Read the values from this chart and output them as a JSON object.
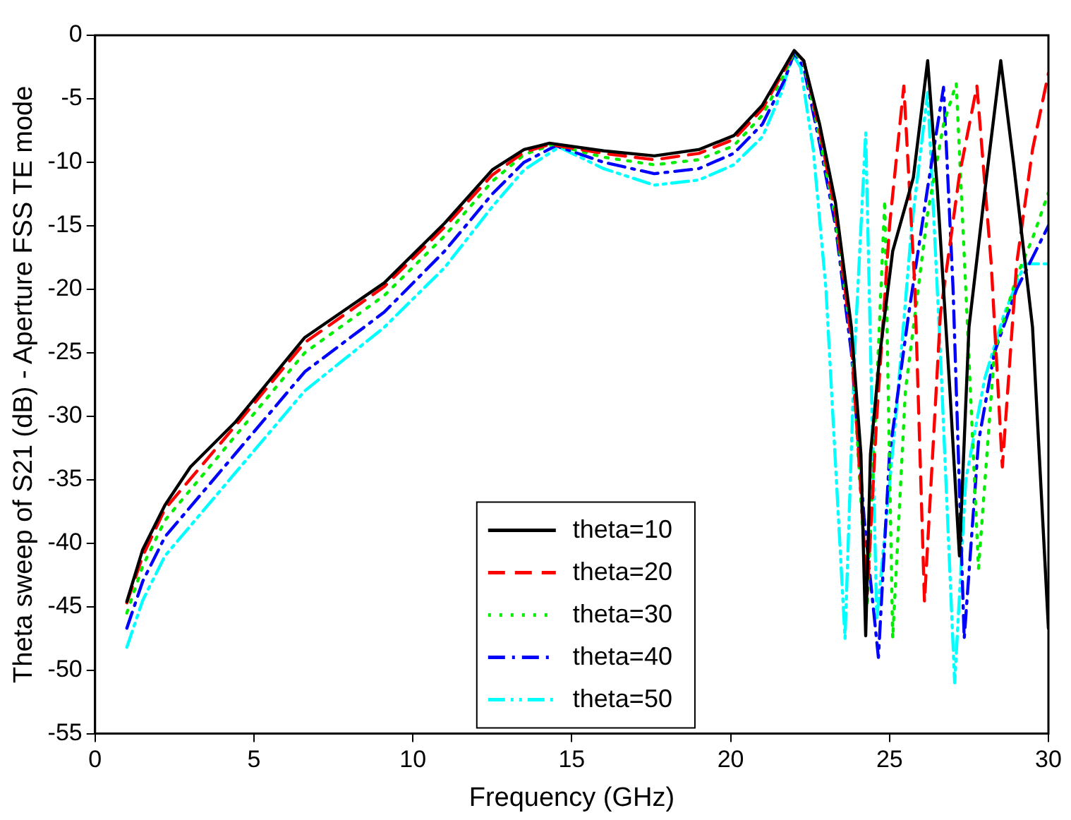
{
  "chart_data": {
    "type": "line",
    "xlabel": "Frequency (GHz)",
    "ylabel": "Theta sweep of S21 (dB) - Aperture FSS TE mode",
    "xlim": [
      0,
      30
    ],
    "xticks": [
      0,
      5,
      10,
      15,
      20,
      25,
      30
    ],
    "ylim": [
      -55,
      0
    ],
    "yticks": [
      -55,
      -50,
      -45,
      -40,
      -35,
      -30,
      -25,
      -20,
      -15,
      -10,
      -5,
      0
    ],
    "grid": false,
    "legend": "bottom",
    "marker": "none",
    "series": [
      {
        "name": "theta=10",
        "color": "#000000",
        "line_style": "solid",
        "x": [
          1,
          1.5,
          2.2,
          3,
          4.4,
          6.6,
          9.1,
          11,
          12.5,
          13.5,
          14.3,
          16,
          17.6,
          19,
          20.1,
          21,
          21.7,
          22,
          22.3,
          22.8,
          23.3,
          23.8,
          24.1,
          24.25,
          24.4,
          24.7,
          25.1,
          25.75,
          26.2,
          26.5,
          26.9,
          27.2,
          27.5,
          28.05,
          28.5,
          28.9,
          29.5,
          30
        ],
        "values": [
          -44.6,
          -40.5,
          -37,
          -34,
          -30.5,
          -23.8,
          -19.5,
          -14.8,
          -10.6,
          -9,
          -8.5,
          -9.1,
          -9.5,
          -9,
          -7.9,
          -5.5,
          -2.5,
          -1.2,
          -2,
          -7,
          -13.2,
          -23,
          -33,
          -47.3,
          -33,
          -25,
          -17,
          -11.2,
          -2,
          -12,
          -28,
          -41,
          -23,
          -11.2,
          -2,
          -10,
          -23,
          -46.7
        ]
      },
      {
        "name": "theta=20",
        "color": "#ff0000",
        "line_style": "dashed",
        "x": [
          1,
          1.5,
          2.2,
          4.4,
          6.6,
          9.1,
          11,
          12.5,
          13.5,
          14.3,
          16,
          17.6,
          19,
          20.1,
          21,
          21.7,
          22,
          22.3,
          22.8,
          23.3,
          23.8,
          24.3,
          24.6,
          25,
          25.45,
          25.8,
          26.1,
          26.6,
          27.2,
          27.75,
          28.2,
          28.55,
          29,
          29.5,
          30
        ],
        "values": [
          -44.7,
          -41,
          -37.3,
          -30.8,
          -24.2,
          -19.8,
          -15.1,
          -11,
          -9.2,
          -8.6,
          -9.3,
          -9.8,
          -9.3,
          -8.2,
          -5.8,
          -2.7,
          -1.2,
          -2,
          -7.5,
          -14,
          -24,
          -44,
          -30,
          -15,
          -4,
          -20,
          -44.6,
          -22,
          -11,
          -4,
          -18,
          -34,
          -18,
          -9,
          -3
        ]
      },
      {
        "name": "theta=30",
        "color": "#00ee00",
        "line_style": "dotted",
        "x": [
          1,
          1.5,
          2.2,
          4.4,
          6.6,
          9.1,
          11,
          12.5,
          13.5,
          14.4,
          16,
          17.6,
          19,
          20.1,
          21,
          21.7,
          22,
          22.3,
          22.8,
          23.3,
          23.8,
          24.3,
          24.85,
          25.1,
          25.5,
          26.2,
          26.7,
          27.1,
          27.4,
          27.8,
          28.3,
          29,
          29.5,
          30
        ],
        "values": [
          -45.5,
          -41.8,
          -38.2,
          -31.6,
          -25,
          -20.5,
          -15.8,
          -11.5,
          -9.4,
          -8.6,
          -9.6,
          -10.2,
          -9.8,
          -8.7,
          -6.3,
          -3,
          -1.3,
          -2.2,
          -8,
          -14.5,
          -24,
          -45,
          -13,
          -47.5,
          -28,
          -14,
          -7,
          -3.8,
          -20,
          -42,
          -25,
          -19,
          -16,
          -12.4
        ]
      },
      {
        "name": "theta=40",
        "color": "#0000ff",
        "line_style": "dashdot",
        "x": [
          1,
          1.5,
          2.2,
          4.4,
          6.6,
          9.1,
          11,
          12.5,
          13.5,
          14.5,
          16,
          17.6,
          19,
          20.1,
          21,
          21.7,
          22,
          22.3,
          22.8,
          23.3,
          23.8,
          24.2,
          24.65,
          25,
          25.6,
          26.2,
          26.7,
          27,
          27.35,
          27.8,
          28.3,
          29,
          29.5,
          30
        ],
        "values": [
          -46.7,
          -43,
          -39.5,
          -33,
          -26.5,
          -21.8,
          -17,
          -12.5,
          -10,
          -8.7,
          -10,
          -10.9,
          -10.5,
          -9.3,
          -7,
          -3.5,
          -1.4,
          -2.5,
          -8.5,
          -15,
          -25,
          -38,
          -49,
          -33,
          -22,
          -12,
          -4.1,
          -20,
          -47.5,
          -32,
          -25,
          -20,
          -17.5,
          -15
        ]
      },
      {
        "name": "theta=50",
        "color": "#00ffff",
        "line_style": "dashdotdot",
        "x": [
          1,
          1.5,
          2.2,
          4.4,
          6.6,
          9.1,
          11,
          12.5,
          13.5,
          14.6,
          16,
          17.6,
          19,
          20.1,
          21,
          21.6,
          21.95,
          22.2,
          22.6,
          23,
          23.6,
          23.9,
          24.25,
          24.45,
          24.6,
          25.2,
          25.7,
          26.2,
          26.6,
          27.05,
          27.4,
          28,
          28.6,
          29.25,
          30
        ],
        "values": [
          -48.2,
          -44.5,
          -41,
          -34.5,
          -28,
          -23,
          -18.3,
          -13.5,
          -10.6,
          -8.8,
          -10.5,
          -11.8,
          -11.4,
          -10.2,
          -8,
          -4.5,
          -1.5,
          -2.5,
          -9,
          -20,
          -47.5,
          -25,
          -7.7,
          -30,
          -46,
          -30,
          -15,
          -4.5,
          -25,
          -51,
          -35,
          -27,
          -22,
          -18,
          -18
        ]
      }
    ]
  }
}
